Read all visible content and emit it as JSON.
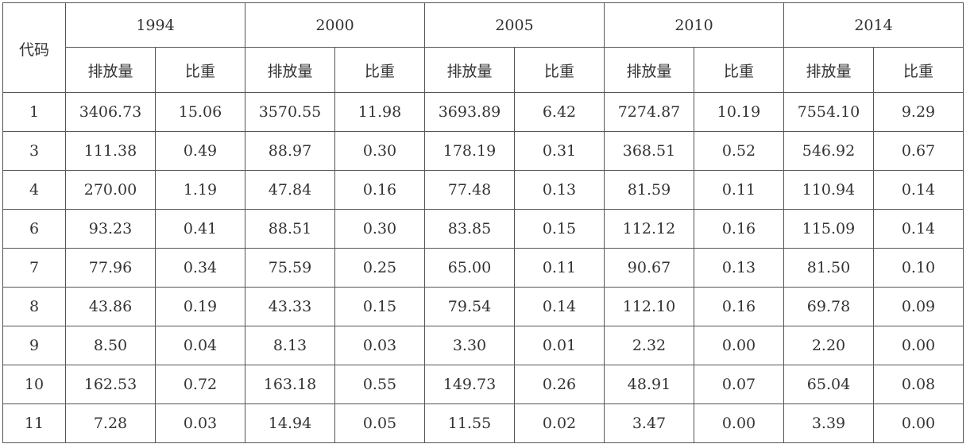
{
  "table": {
    "corner": "代码",
    "groups": [
      {
        "year": "1994",
        "sub": [
          "排放量",
          "比重"
        ]
      },
      {
        "year": "2000",
        "sub": [
          "排放量",
          "比重"
        ]
      },
      {
        "year": "2005",
        "sub": [
          "排放量",
          "比重"
        ]
      },
      {
        "year": "2010",
        "sub": [
          "排放量",
          "比重"
        ]
      },
      {
        "year": "2014",
        "sub": [
          "排放量",
          "比重"
        ]
      }
    ],
    "rows": [
      [
        "1",
        "3406.73",
        "15.06",
        "3570.55",
        "11.98",
        "3693.89",
        "6.42",
        "7274.87",
        "10.19",
        "7554.10",
        "9.29"
      ],
      [
        "3",
        "111.38",
        "0.49",
        "88.97",
        "0.30",
        "178.19",
        "0.31",
        "368.51",
        "0.52",
        "546.92",
        "0.67"
      ],
      [
        "4",
        "270.00",
        "1.19",
        "47.84",
        "0.16",
        "77.48",
        "0.13",
        "81.59",
        "0.11",
        "110.94",
        "0.14"
      ],
      [
        "6",
        "93.23",
        "0.41",
        "88.51",
        "0.30",
        "83.85",
        "0.15",
        "112.12",
        "0.16",
        "115.09",
        "0.14"
      ],
      [
        "7",
        "77.96",
        "0.34",
        "75.59",
        "0.25",
        "65.00",
        "0.11",
        "90.67",
        "0.13",
        "81.50",
        "0.10"
      ],
      [
        "8",
        "43.86",
        "0.19",
        "43.33",
        "0.15",
        "79.54",
        "0.14",
        "112.10",
        "0.16",
        "69.78",
        "0.09"
      ],
      [
        "9",
        "8.50",
        "0.04",
        "8.13",
        "0.03",
        "3.30",
        "0.01",
        "2.32",
        "0.00",
        "2.20",
        "0.00"
      ],
      [
        "10",
        "162.53",
        "0.72",
        "163.18",
        "0.55",
        "149.73",
        "0.26",
        "48.91",
        "0.07",
        "65.04",
        "0.08"
      ],
      [
        "11",
        "7.28",
        "0.03",
        "14.94",
        "0.05",
        "11.55",
        "0.02",
        "3.47",
        "0.00",
        "3.39",
        "0.00"
      ]
    ]
  }
}
